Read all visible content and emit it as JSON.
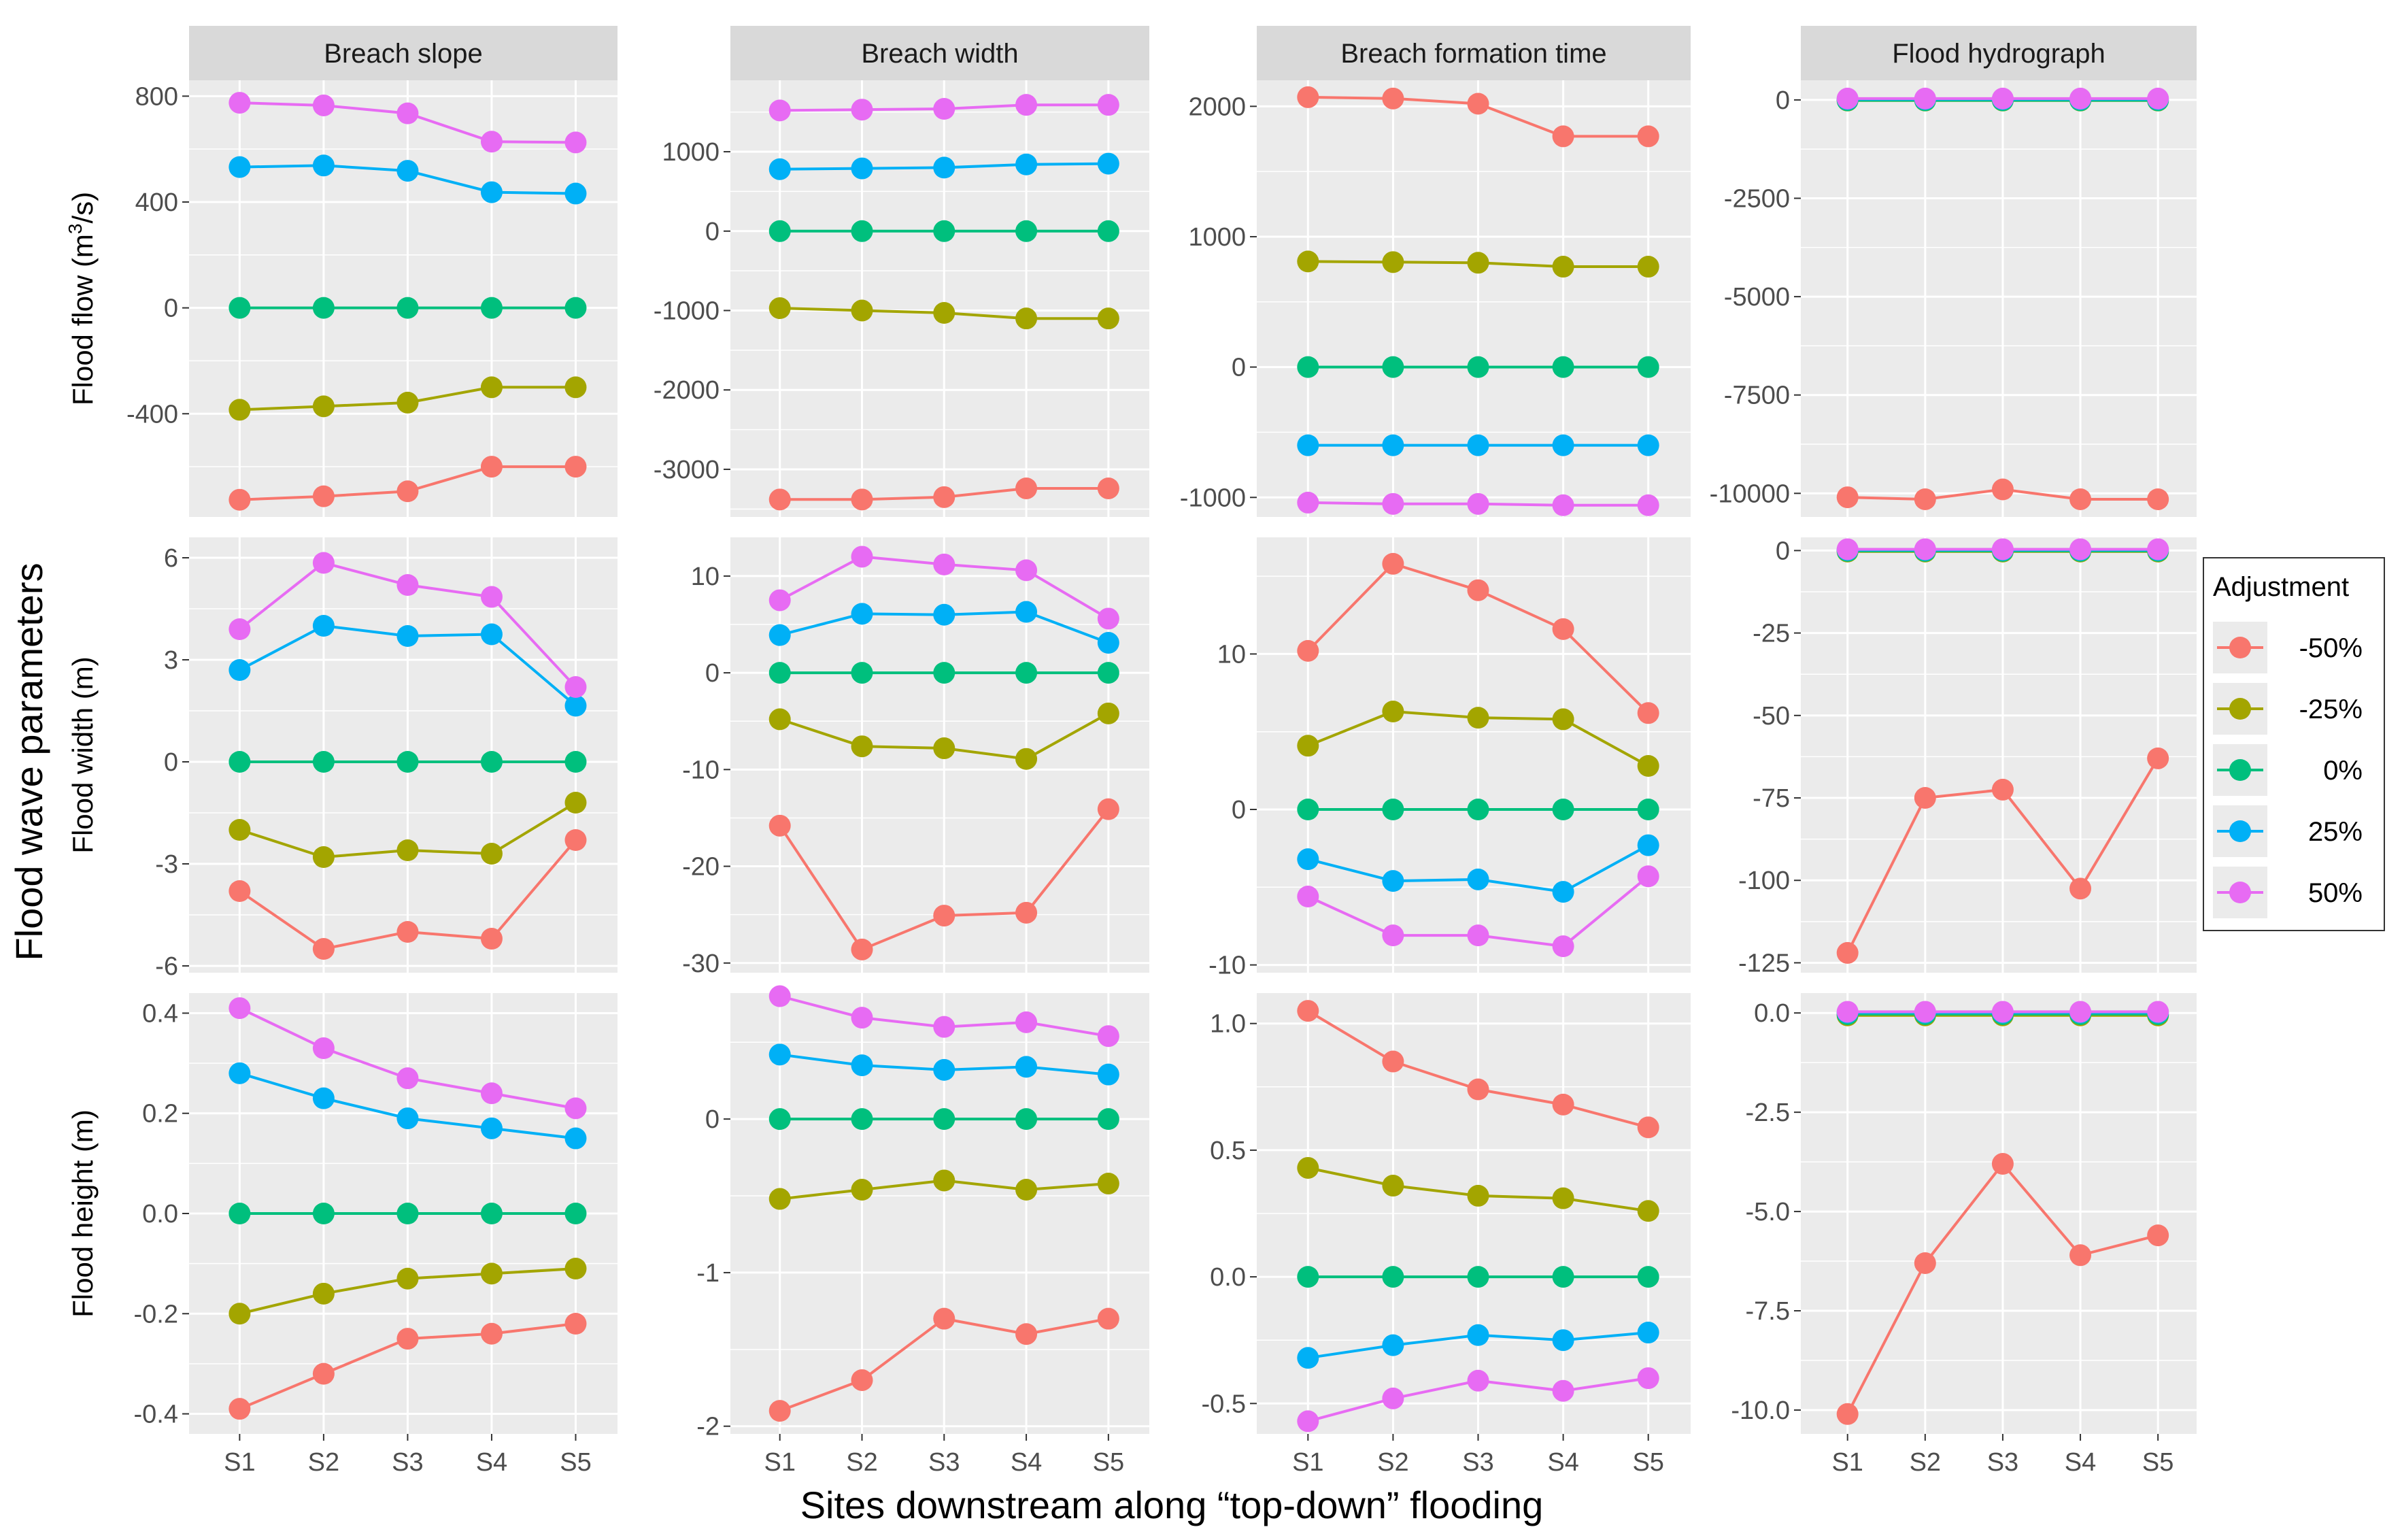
{
  "chart_data": {
    "type": "line",
    "xlabel": "Sites downstream along “top-down” flooding",
    "ylabel_outer": "Flood wave parameters",
    "x": [
      "S1",
      "S2",
      "S3",
      "S4",
      "S5"
    ],
    "legend": {
      "title": "Adjustment",
      "placement": "right",
      "entries": [
        {
          "label": "-50%",
          "color": "#F8766D"
        },
        {
          "label": "-25%",
          "color": "#A3A500"
        },
        {
          "label": "0%",
          "color": "#00BF7D"
        },
        {
          "label": "25%",
          "color": "#00B0F6"
        },
        {
          "label": "50%",
          "color": "#E76BF3"
        }
      ]
    },
    "columns": [
      "Breach slope",
      "Breach width",
      "Breach formation time",
      "Flood hydrograph"
    ],
    "rows": [
      {
        "ylabel": "Flood flow (m³/s)",
        "ylabel_main": "Flood flow (m",
        "ylabel_sup": "3",
        "ylabel_end": "/s)"
      },
      {
        "ylabel": "Flood width (m)"
      },
      {
        "ylabel": "Flood height (m)"
      }
    ],
    "panels": [
      [
        {
          "ylim": [
            -790,
            860
          ],
          "yticks": [
            800,
            400,
            0,
            -400
          ],
          "ytick_labels": [
            "800",
            "400",
            "0",
            "-400"
          ],
          "series": [
            [
              -725,
              -712,
              -693,
              -600,
              -600
            ],
            [
              -385,
              -372,
              -358,
              -300,
              -300
            ],
            [
              0,
              0,
              0,
              0,
              0
            ],
            [
              532,
              538,
              518,
              437,
              432
            ],
            [
              775,
              765,
              735,
              628,
              625
            ]
          ]
        },
        {
          "ylim": [
            -3600,
            1900
          ],
          "yticks": [
            1000,
            0,
            -1000,
            -2000,
            -3000
          ],
          "ytick_labels": [
            "1000",
            "0",
            "-1000",
            "-2000",
            "-3000"
          ],
          "series": [
            [
              -3380,
              -3380,
              -3350,
              -3240,
              -3240
            ],
            [
              -970,
              -1000,
              -1030,
              -1100,
              -1100
            ],
            [
              0,
              0,
              0,
              0,
              0
            ],
            [
              780,
              790,
              800,
              840,
              850
            ],
            [
              1520,
              1530,
              1540,
              1590,
              1590
            ]
          ]
        },
        {
          "ylim": [
            -1150,
            2200
          ],
          "yticks": [
            2000,
            1000,
            0,
            -1000
          ],
          "ytick_labels": [
            "2000",
            "1000",
            "0",
            "-1000"
          ],
          "series": [
            [
              2070,
              2060,
              2020,
              1770,
              1770
            ],
            [
              810,
              805,
              800,
              770,
              770
            ],
            [
              0,
              0,
              0,
              0,
              0
            ],
            [
              -600,
              -600,
              -600,
              -600,
              -600
            ],
            [
              -1040,
              -1050,
              -1050,
              -1060,
              -1060
            ]
          ]
        },
        {
          "ylim": [
            -10600,
            500
          ],
          "yticks": [
            0,
            -2500,
            -5000,
            -7500,
            -10000
          ],
          "ytick_labels": [
            "0",
            "-2500",
            "-5000",
            "-7500",
            "-10000"
          ],
          "series": [
            [
              -10100,
              -10150,
              -9900,
              -10150,
              -10150
            ],
            [
              -15,
              -15,
              -15,
              -15,
              -15
            ],
            [
              -10,
              -10,
              -10,
              -10,
              -10
            ],
            [
              20,
              20,
              20,
              20,
              20
            ],
            [
              35,
              35,
              35,
              35,
              35
            ]
          ]
        }
      ],
      [
        {
          "ylim": [
            -6.2,
            6.6
          ],
          "yticks": [
            6,
            3,
            0,
            -3,
            -6
          ],
          "ytick_labels": [
            "6",
            "3",
            "0",
            "-3",
            "-6"
          ],
          "series": [
            [
              -3.8,
              -5.5,
              -5.0,
              -5.2,
              -2.3
            ],
            [
              -2.0,
              -2.8,
              -2.6,
              -2.7,
              -1.2
            ],
            [
              0,
              0,
              0,
              0,
              0
            ],
            [
              2.7,
              4.0,
              3.7,
              3.75,
              1.65
            ],
            [
              3.9,
              5.85,
              5.2,
              4.85,
              2.2
            ]
          ]
        },
        {
          "ylim": [
            -31,
            14
          ],
          "yticks": [
            10,
            0,
            -10,
            -20,
            -30
          ],
          "ytick_labels": [
            "10",
            "0",
            "-10",
            "-20",
            "-30"
          ],
          "series": [
            [
              -15.8,
              -28.6,
              -25.1,
              -24.8,
              -14.1
            ],
            [
              -4.8,
              -7.6,
              -7.8,
              -8.9,
              -4.2
            ],
            [
              0,
              0,
              0,
              0,
              0
            ],
            [
              3.9,
              6.1,
              6.0,
              6.3,
              3.1
            ],
            [
              7.5,
              12.0,
              11.2,
              10.6,
              5.6
            ]
          ]
        },
        {
          "ylim": [
            -10.5,
            17.5
          ],
          "yticks": [
            10,
            0,
            -10
          ],
          "ytick_labels": [
            "10",
            "0",
            "-10"
          ],
          "series": [
            [
              10.2,
              15.8,
              14.1,
              11.6,
              6.2
            ],
            [
              4.1,
              6.3,
              5.9,
              5.8,
              2.8
            ],
            [
              0,
              0,
              0,
              0,
              0
            ],
            [
              -3.2,
              -4.6,
              -4.5,
              -5.3,
              -2.3
            ],
            [
              -5.6,
              -8.1,
              -8.1,
              -8.8,
              -4.3
            ]
          ]
        },
        {
          "ylim": [
            -128,
            4
          ],
          "yticks": [
            0,
            -25,
            -50,
            -75,
            -100,
            -125
          ],
          "ytick_labels": [
            "0",
            "-25",
            "-50",
            "-75",
            "-100",
            "-125"
          ],
          "series": [
            [
              -122,
              -75,
              -72.5,
              -102.5,
              -63
            ],
            [
              -0.3,
              -0.3,
              -0.3,
              -0.3,
              -0.3
            ],
            [
              -0.1,
              -0.1,
              -0.1,
              -0.1,
              -0.1
            ],
            [
              0.2,
              0.2,
              0.2,
              0.2,
              0.2
            ],
            [
              0.4,
              0.4,
              0.4,
              0.4,
              0.4
            ]
          ]
        }
      ],
      [
        {
          "ylim": [
            -0.44,
            0.44
          ],
          "yticks": [
            0.4,
            0.2,
            0.0,
            -0.2,
            -0.4
          ],
          "ytick_labels": [
            "0.4",
            "0.2",
            "0.0",
            "-0.2",
            "-0.4"
          ],
          "series": [
            [
              -0.39,
              -0.32,
              -0.25,
              -0.24,
              -0.22
            ],
            [
              -0.2,
              -0.16,
              -0.13,
              -0.12,
              -0.11
            ],
            [
              0,
              0,
              0,
              0,
              0
            ],
            [
              0.28,
              0.23,
              0.19,
              0.17,
              0.15
            ],
            [
              0.41,
              0.33,
              0.27,
              0.24,
              0.21
            ]
          ]
        },
        {
          "ylim": [
            -2.05,
            0.82
          ],
          "yticks": [
            0,
            -1,
            -2
          ],
          "ytick_labels": [
            "0",
            "-1",
            "-2"
          ],
          "series": [
            [
              -1.9,
              -1.7,
              -1.3,
              -1.4,
              -1.3
            ],
            [
              -0.52,
              -0.46,
              -0.4,
              -0.46,
              -0.42
            ],
            [
              0,
              0,
              0,
              0,
              0
            ],
            [
              0.42,
              0.35,
              0.32,
              0.34,
              0.29
            ],
            [
              0.8,
              0.66,
              0.6,
              0.63,
              0.54
            ]
          ]
        },
        {
          "ylim": [
            -0.62,
            1.12
          ],
          "yticks": [
            1.0,
            0.5,
            0.0,
            -0.5
          ],
          "ytick_labels": [
            "1.0",
            "0.5",
            "0.0",
            "-0.5"
          ],
          "series": [
            [
              1.05,
              0.85,
              0.74,
              0.68,
              0.59
            ],
            [
              0.43,
              0.36,
              0.32,
              0.31,
              0.26
            ],
            [
              0,
              0,
              0,
              0,
              0
            ],
            [
              -0.32,
              -0.27,
              -0.23,
              -0.25,
              -0.22
            ],
            [
              -0.57,
              -0.48,
              -0.41,
              -0.45,
              -0.4
            ]
          ]
        },
        {
          "ylim": [
            -10.6,
            0.5
          ],
          "yticks": [
            0.0,
            -2.5,
            -5.0,
            -7.5,
            -10.0
          ],
          "ytick_labels": [
            "0.0",
            "-2.5",
            "-5.0",
            "-7.5",
            "-10.0"
          ],
          "series": [
            [
              -10.1,
              -6.3,
              -3.8,
              -6.1,
              -5.6
            ],
            [
              -0.06,
              -0.06,
              -0.06,
              -0.06,
              -0.06
            ],
            [
              -0.03,
              -0.03,
              -0.03,
              -0.03,
              -0.03
            ],
            [
              0.01,
              0.01,
              0.01,
              0.01,
              0.01
            ],
            [
              0.03,
              0.03,
              0.03,
              0.03,
              0.03
            ]
          ]
        }
      ]
    ]
  }
}
